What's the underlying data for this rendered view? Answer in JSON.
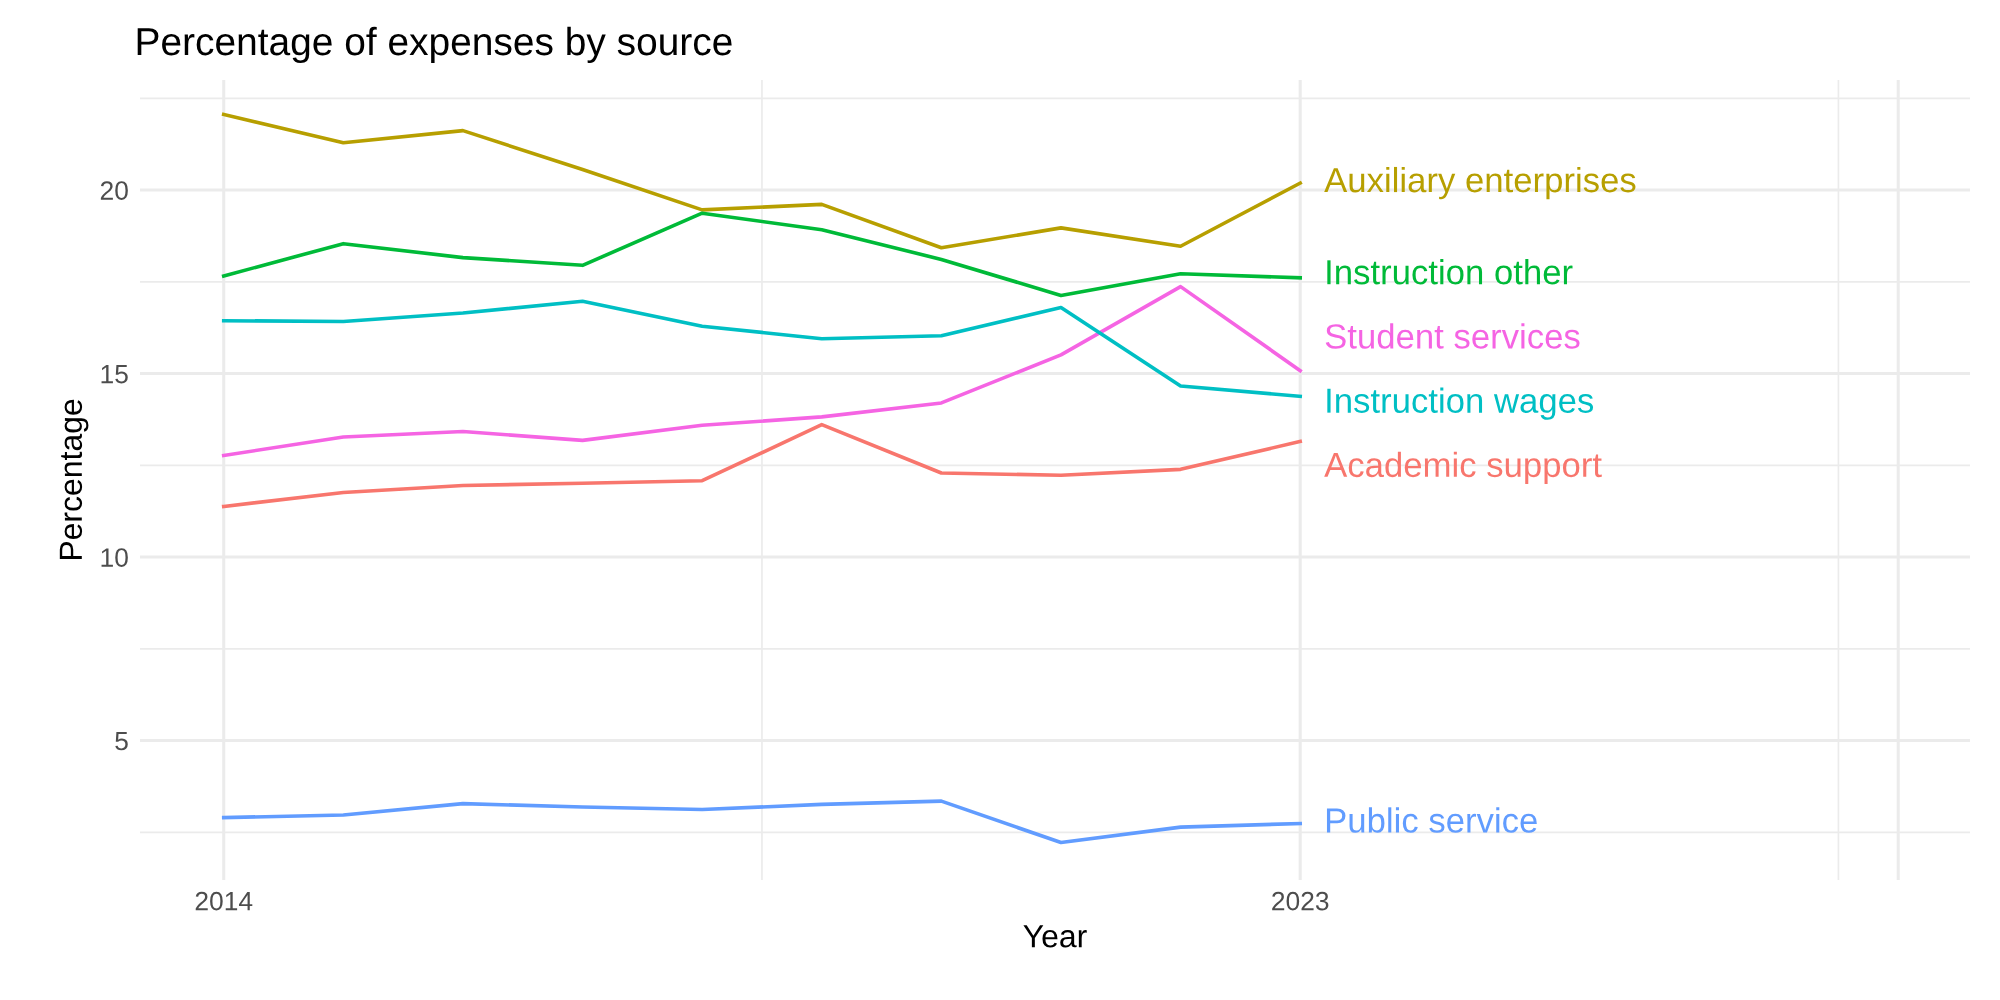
{
  "chart_data": {
    "type": "line",
    "title": "Percentage of expenses by source",
    "xlabel": "Year",
    "ylabel": "Percentage",
    "x": [
      2014,
      2015,
      2016,
      2017,
      2018,
      2019,
      2020,
      2021,
      2022,
      2023
    ],
    "series": [
      {
        "name": "Auxiliary enterprises",
        "color": "#b79f00",
        "values": [
          22.06,
          21.29,
          21.62,
          20.56,
          19.46,
          19.61,
          18.43,
          18.97,
          18.47,
          20.19
        ]
      },
      {
        "name": "Instruction other",
        "color": "#00ba38",
        "values": [
          17.66,
          18.54,
          18.16,
          17.95,
          19.37,
          18.92,
          18.11,
          17.13,
          17.72,
          17.61
        ]
      },
      {
        "name": "Student services",
        "color": "#f564e3",
        "values": [
          12.77,
          13.27,
          13.42,
          13.18,
          13.59,
          13.82,
          14.2,
          15.51,
          17.37,
          15.08
        ]
      },
      {
        "name": "Instruction wages",
        "color": "#00bfc4",
        "values": [
          16.44,
          16.42,
          16.65,
          16.97,
          16.29,
          15.95,
          16.03,
          16.8,
          14.66,
          14.38
        ]
      },
      {
        "name": "Academic support",
        "color": "#f8766d",
        "values": [
          11.38,
          11.76,
          11.95,
          12.01,
          12.08,
          13.61,
          12.29,
          12.23,
          12.39,
          13.15
        ]
      },
      {
        "name": "Public service",
        "color": "#619cff",
        "values": [
          2.9,
          2.97,
          3.28,
          3.19,
          3.12,
          3.26,
          3.35,
          2.22,
          2.64,
          2.74
        ]
      }
    ],
    "xlim": [
      2013.3,
      2028.6
    ],
    "xticks": [
      2014,
      2023,
      {
        "value": 2028,
        "label": null
      }
    ],
    "ylim": [
      1.2,
      23.0
    ],
    "yticks": [
      5,
      10,
      15,
      20
    ],
    "grid": true,
    "legend": false,
    "marker": "none",
    "line_style": "solid"
  }
}
